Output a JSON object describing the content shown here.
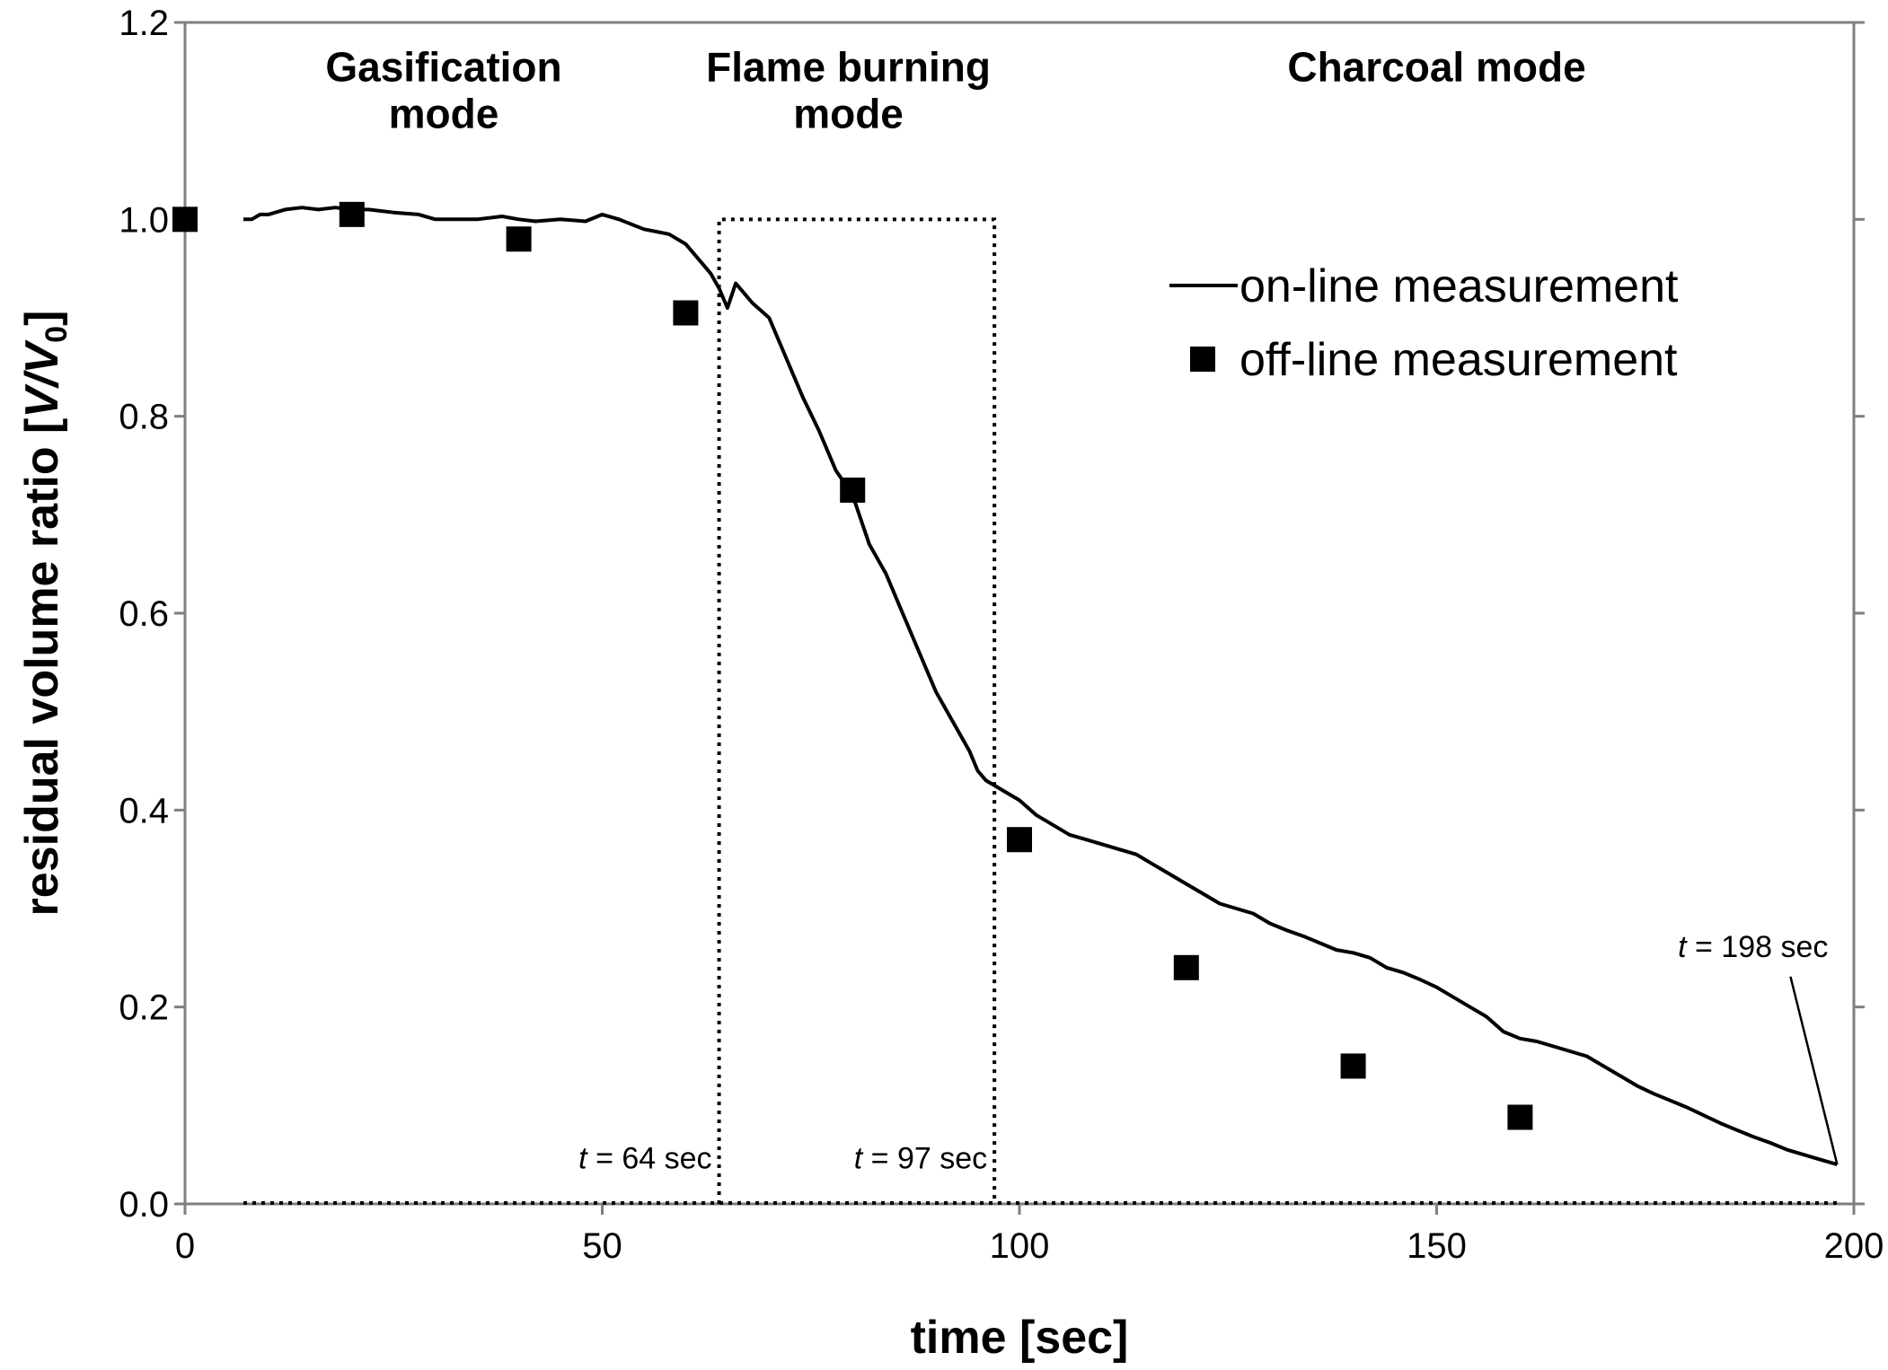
{
  "chart_data": {
    "type": "line",
    "title": "",
    "xlabel": "time [sec]",
    "ylabel": "residual volume ratio [V/V0]",
    "ylabel_parts": {
      "prefix": "residual volume  ratio  [",
      "v": "V",
      "slash": "/",
      "v0": "V",
      "v0_sub": "0",
      "suffix": "]"
    },
    "xlim": [
      0,
      200
    ],
    "ylim": [
      0,
      1.2
    ],
    "xticks": [
      0,
      50,
      100,
      150,
      200
    ],
    "xtick_labels": [
      "0",
      "50",
      "100",
      "150",
      "200"
    ],
    "yticks": [
      0,
      0.2,
      0.4,
      0.6,
      0.8,
      1.0,
      1.2
    ],
    "ytick_labels": [
      "0.0",
      "0.2",
      "0.4",
      "0.6",
      "0.8",
      "1.0",
      "1.2"
    ],
    "grid": false,
    "legend_position": "top-right",
    "series": [
      {
        "name": "on-line measurement",
        "style": "line",
        "color": "#000000",
        "x": [
          7,
          8,
          9,
          10,
          12,
          14,
          16,
          18,
          20,
          22,
          25,
          28,
          30,
          33,
          35,
          38,
          40,
          42,
          45,
          48,
          50,
          52,
          55,
          58,
          60,
          62,
          63,
          64,
          65,
          66,
          67,
          68,
          70,
          72,
          74,
          76,
          78,
          80,
          82,
          84,
          86,
          88,
          90,
          92,
          94,
          95,
          96,
          97,
          98,
          100,
          102,
          104,
          106,
          108,
          110,
          112,
          114,
          116,
          118,
          120,
          122,
          124,
          126,
          128,
          130,
          132,
          134,
          136,
          138,
          140,
          142,
          144,
          146,
          148,
          150,
          152,
          154,
          156,
          158,
          160,
          162,
          164,
          166,
          168,
          170,
          172,
          174,
          176,
          178,
          180,
          182,
          184,
          186,
          188,
          190,
          192,
          194,
          196,
          198
        ],
        "values": [
          1.0,
          1.0,
          1.005,
          1.005,
          1.01,
          1.012,
          1.01,
          1.012,
          1.01,
          1.01,
          1.007,
          1.005,
          1.0,
          1.0,
          1.0,
          1.003,
          1.0,
          0.998,
          1.0,
          0.998,
          1.005,
          1.0,
          0.99,
          0.985,
          0.975,
          0.955,
          0.945,
          0.93,
          0.91,
          0.935,
          0.925,
          0.915,
          0.9,
          0.86,
          0.82,
          0.785,
          0.745,
          0.72,
          0.67,
          0.64,
          0.6,
          0.56,
          0.52,
          0.49,
          0.46,
          0.44,
          0.43,
          0.425,
          0.42,
          0.41,
          0.395,
          0.385,
          0.375,
          0.37,
          0.365,
          0.36,
          0.355,
          0.345,
          0.335,
          0.325,
          0.315,
          0.305,
          0.3,
          0.295,
          0.285,
          0.278,
          0.272,
          0.265,
          0.258,
          0.255,
          0.25,
          0.24,
          0.235,
          0.228,
          0.22,
          0.21,
          0.2,
          0.19,
          0.175,
          0.168,
          0.165,
          0.16,
          0.155,
          0.15,
          0.14,
          0.13,
          0.12,
          0.112,
          0.105,
          0.098,
          0.09,
          0.082,
          0.075,
          0.068,
          0.062,
          0.055,
          0.05,
          0.045,
          0.04
        ]
      },
      {
        "name": "off-line measurement",
        "style": "marker",
        "marker": "square",
        "color": "#000000",
        "x": [
          0,
          20,
          40,
          60,
          80,
          100,
          120,
          140,
          160
        ],
        "values": [
          1.0,
          1.005,
          0.98,
          0.905,
          0.725,
          0.37,
          0.24,
          0.14,
          0.088
        ]
      }
    ],
    "regions": [
      {
        "label_lines": [
          "Gasification",
          "mode"
        ],
        "x_center": 31,
        "y_top": 1.155
      },
      {
        "label_lines": [
          "Flame burning",
          "mode"
        ],
        "x_center": 79.5,
        "y_top": 1.155
      },
      {
        "label_lines": [
          "Charcoal mode"
        ],
        "x_center": 150,
        "y_top": 1.155
      }
    ],
    "boundary_box": {
      "x_start": 64,
      "x_end": 97,
      "y_top": 1.0
    },
    "annotations": [
      {
        "italic": "t",
        "text": " = 64 sec",
        "x": 64,
        "y": 0.025,
        "anchor": "end"
      },
      {
        "italic": "t",
        "text": " = 97 sec",
        "x": 97,
        "y": 0.025,
        "anchor": "end"
      },
      {
        "italic": "t",
        "text": " = 198 sec",
        "x": 198,
        "y": 0.24,
        "anchor": "end",
        "arrow_to": [
          198,
          0.04
        ]
      }
    ]
  }
}
